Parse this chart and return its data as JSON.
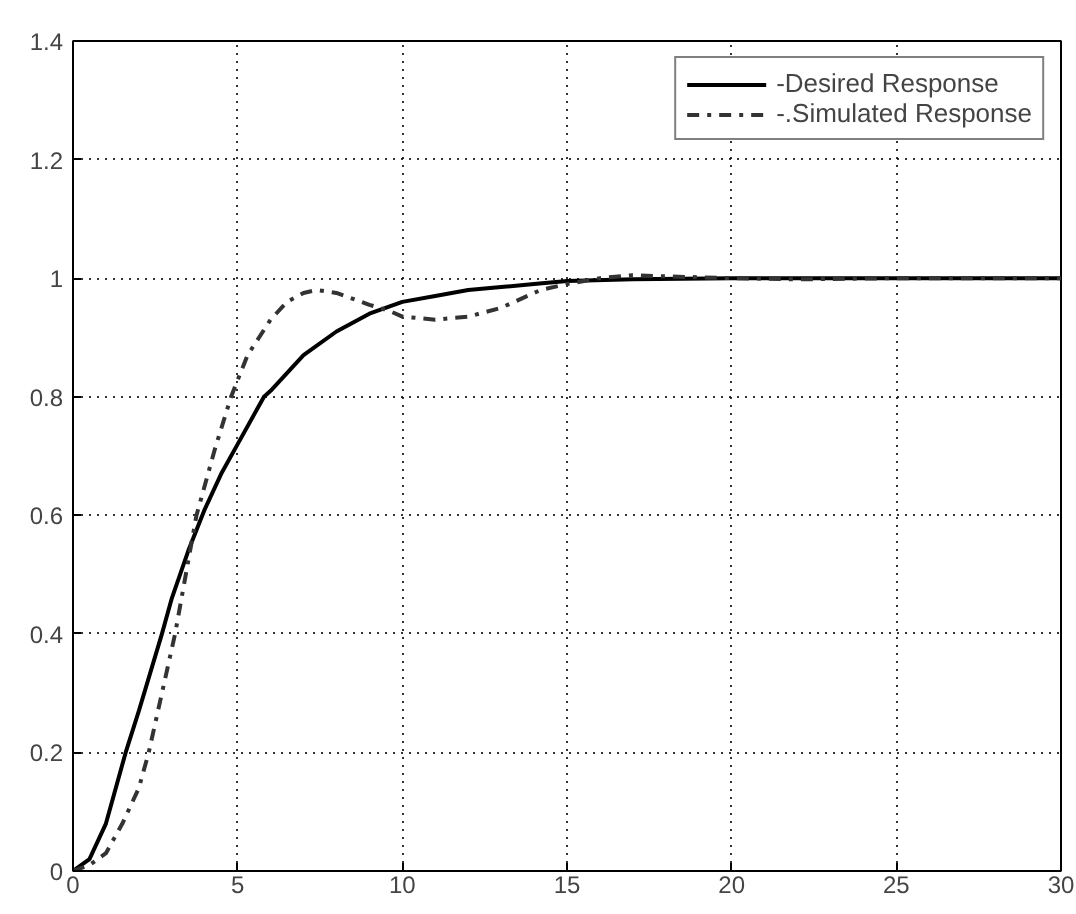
{
  "chart_data": {
    "type": "line",
    "xlim": [
      0,
      30
    ],
    "ylim": [
      0,
      1.4
    ],
    "xticks": [
      0,
      5,
      10,
      15,
      20,
      25,
      30
    ],
    "yticks": [
      0,
      0.2,
      0.4,
      0.6,
      0.8,
      1,
      1.2,
      1.4
    ],
    "grid": true,
    "legend": "top right",
    "marker": "none",
    "series": [
      {
        "name": "-Desired Response",
        "color": "#000000",
        "line_style": "solid",
        "x": [
          0,
          0.5,
          1,
          1.6,
          2,
          2.7,
          3,
          3.5,
          4,
          4.5,
          5,
          5.8,
          6,
          7,
          8,
          9,
          10,
          11,
          12,
          13,
          14,
          15,
          17,
          20,
          25,
          30
        ],
        "values": [
          0,
          0.02,
          0.08,
          0.2,
          0.27,
          0.4,
          0.46,
          0.54,
          0.61,
          0.67,
          0.72,
          0.8,
          0.81,
          0.87,
          0.91,
          0.94,
          0.96,
          0.97,
          0.98,
          0.985,
          0.99,
          0.995,
          0.998,
          1,
          1,
          1
        ]
      },
      {
        "name": "-.Simulated Response",
        "color": "#333333",
        "line_style": "dashdot",
        "x": [
          0,
          0.5,
          1,
          1.5,
          2,
          2.3,
          3.1,
          3.75,
          4.3,
          4.8,
          5.3,
          6,
          6.5,
          7,
          7.4,
          8,
          8.5,
          9,
          9.6,
          10,
          11,
          12,
          13,
          14.2,
          15,
          16,
          17,
          18,
          20,
          22,
          25,
          30
        ],
        "values": [
          0,
          0.01,
          0.03,
          0.08,
          0.14,
          0.2,
          0.4,
          0.6,
          0.71,
          0.8,
          0.87,
          0.93,
          0.96,
          0.975,
          0.98,
          0.975,
          0.965,
          0.955,
          0.945,
          0.935,
          0.93,
          0.935,
          0.95,
          0.98,
          0.99,
          1,
          1.005,
          1.003,
          1,
          0.998,
          1,
          1
        ]
      }
    ]
  }
}
